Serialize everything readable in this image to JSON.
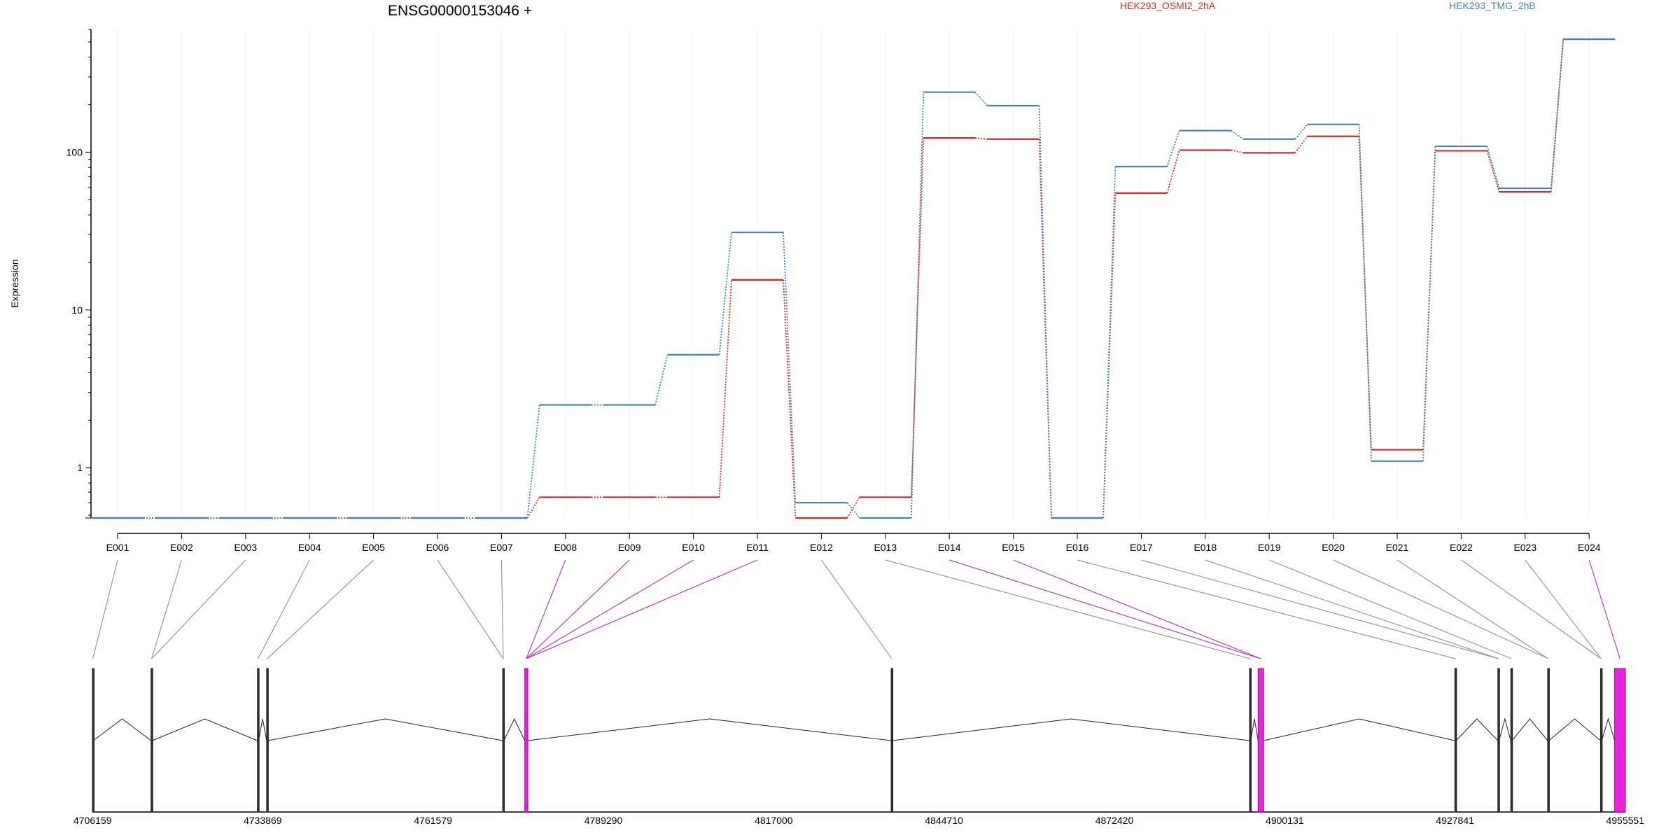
{
  "chart_data": {
    "type": "line",
    "title": "ENSG00000153046 +",
    "ylabel": "Expression",
    "xlabel": "",
    "yscale": "log",
    "ylim": [
      0.48,
      600
    ],
    "yticks": [
      "1",
      "10",
      "100"
    ],
    "legend_placement": "top",
    "grid": true,
    "categories": [
      "E001",
      "E002",
      "E003",
      "E004",
      "E005",
      "E006",
      "E007",
      "E008",
      "E009",
      "E010",
      "E011",
      "E012",
      "E013",
      "E014",
      "E015",
      "E016",
      "E017",
      "E018",
      "E019",
      "E020",
      "E021",
      "E022",
      "E023",
      "E024"
    ],
    "series": [
      {
        "name": "HEK293_OSMI2_2hA",
        "color": "#d62728",
        "values": [
          0.48,
          0.48,
          0.48,
          0.48,
          0.48,
          0.48,
          0.48,
          0.65,
          0.65,
          0.65,
          15.5,
          0.48,
          0.65,
          123,
          121,
          0.48,
          55,
          103,
          99,
          126,
          1.3,
          102,
          56,
          520
        ]
      },
      {
        "name": "HEK293_TMG_2hB",
        "color": "#4682b4",
        "values": [
          0.48,
          0.48,
          0.48,
          0.48,
          0.48,
          0.48,
          0.48,
          2.5,
          2.5,
          5.2,
          31,
          0.6,
          0.48,
          240,
          197,
          0.48,
          81,
          137,
          121,
          150,
          1.1,
          109,
          59,
          520
        ]
      }
    ],
    "gene_model": {
      "coordinate_ticks": [
        "4706159",
        "4733869",
        "4761579",
        "4789290",
        "4817000",
        "4844710",
        "4872420",
        "4900131",
        "4927841",
        "4955551"
      ],
      "coordinate_range": [
        4706159,
        4955551
      ],
      "exons": [
        {
          "id": "E001",
          "start": 4706159,
          "end": 4706300,
          "highlight": false
        },
        {
          "id": "E002",
          "start": 4715700,
          "end": 4715900,
          "highlight": false
        },
        {
          "id": "E003",
          "start": 4715700,
          "end": 4715900,
          "highlight": false
        },
        {
          "id": "E004",
          "start": 4733000,
          "end": 4733200,
          "highlight": false
        },
        {
          "id": "E005",
          "start": 4734500,
          "end": 4734700,
          "highlight": false
        },
        {
          "id": "E006",
          "start": 4772900,
          "end": 4773100,
          "highlight": false
        },
        {
          "id": "E007",
          "start": 4772900,
          "end": 4773100,
          "highlight": false
        },
        {
          "id": "E008",
          "start": 4776500,
          "end": 4777000,
          "highlight": true
        },
        {
          "id": "E009",
          "start": 4776500,
          "end": 4777000,
          "highlight": true
        },
        {
          "id": "E010",
          "start": 4776500,
          "end": 4777000,
          "highlight": true
        },
        {
          "id": "E011",
          "start": 4776500,
          "end": 4777000,
          "highlight": true
        },
        {
          "id": "E012",
          "start": 4836100,
          "end": 4836300,
          "highlight": false
        },
        {
          "id": "E013",
          "start": 4894400,
          "end": 4894600,
          "highlight": false
        },
        {
          "id": "E014",
          "start": 4895800,
          "end": 4896700,
          "highlight": true
        },
        {
          "id": "E015",
          "start": 4895800,
          "end": 4896700,
          "highlight": true
        },
        {
          "id": "E016",
          "start": 4927800,
          "end": 4928000,
          "highlight": false
        },
        {
          "id": "E017",
          "start": 4934800,
          "end": 4935000,
          "highlight": false
        },
        {
          "id": "E018",
          "start": 4934800,
          "end": 4935000,
          "highlight": false
        },
        {
          "id": "E019",
          "start": 4936900,
          "end": 4937100,
          "highlight": false
        },
        {
          "id": "E020",
          "start": 4942900,
          "end": 4943100,
          "highlight": false
        },
        {
          "id": "E021",
          "start": 4942900,
          "end": 4943100,
          "highlight": false
        },
        {
          "id": "E022",
          "start": 4951500,
          "end": 4951700,
          "highlight": false
        },
        {
          "id": "E023",
          "start": 4951500,
          "end": 4951700,
          "highlight": false
        },
        {
          "id": "E024",
          "start": 4953800,
          "end": 4955551,
          "highlight": true
        }
      ]
    }
  }
}
